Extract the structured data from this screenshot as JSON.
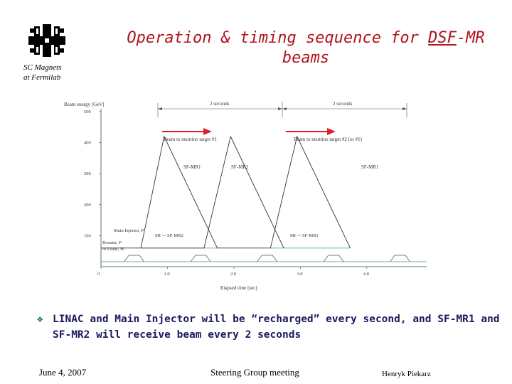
{
  "slide": {
    "org_line1": "SC Magnets",
    "org_line2": "at Fermilab",
    "title_line1_a": "Operation & timing sequence for ",
    "title_line1_b": "DSF",
    "title_line1_c": "-MR",
    "title_line2": "beams",
    "bullet_mark": "❖",
    "bullet_text": "LINAC and Main Injector will be “recharged” every second, and SF-MR1 and SF-MR2 will receive beam every 2 seconds",
    "footer_date": "June 4, 2007",
    "footer_meeting": "Steering Group meeting",
    "footer_author": "Henryk Piekarz",
    "logo_icon": "fermilab-logo-icon"
  },
  "colors": {
    "title": "#b0131e",
    "arrow": "#e02020",
    "bullet_text": "#1a1a60",
    "bullet_mark": "#0e6e5e",
    "flat_line": "#3a9a8a"
  },
  "chart_data": {
    "type": "line",
    "title": "",
    "ylabel": "Beam energy  [GeV]",
    "xlabel": "Elapsed time  [sec]",
    "xlim": [
      0,
      4.9
    ],
    "ylim": [
      0,
      500
    ],
    "x_ticks": [
      "0",
      "1.0",
      "2.0",
      "3.0",
      "4.0"
    ],
    "y_ticks": [
      "100",
      "200",
      "300",
      "400",
      "500"
    ],
    "series": [
      {
        "name": "SF-MR1",
        "x": [
          0.6,
          0.95,
          1.75,
          2.55,
          2.95,
          3.75
        ],
        "y": [
          60,
          420,
          60,
          60,
          420,
          60
        ]
      },
      {
        "name": "SF-MR2",
        "x": [
          0,
          0.75,
          1.55,
          1.95,
          2.75
        ],
        "y": [
          60,
          60,
          60,
          420,
          60
        ]
      }
    ],
    "annotations": {
      "period1": "2 seconds",
      "period2": "2 seconds",
      "beam1": "Beam to neutrino target #1",
      "beam2": "Beam to neutrino target #2   (or #1)",
      "lbl_sfmr1_a": "SF-MR1",
      "lbl_sfmr2": "SF-MR2",
      "lbl_sfmr1_b": "SF-MR1",
      "lbl_mi": "Main Injector, P",
      "lbl_booster1": "Booster, P",
      "lbl_booster2": "or Linac, H-",
      "lbl_transfer1": "MI -> SF-MR2",
      "lbl_transfer2": "MI -> SF-MR1"
    }
  }
}
